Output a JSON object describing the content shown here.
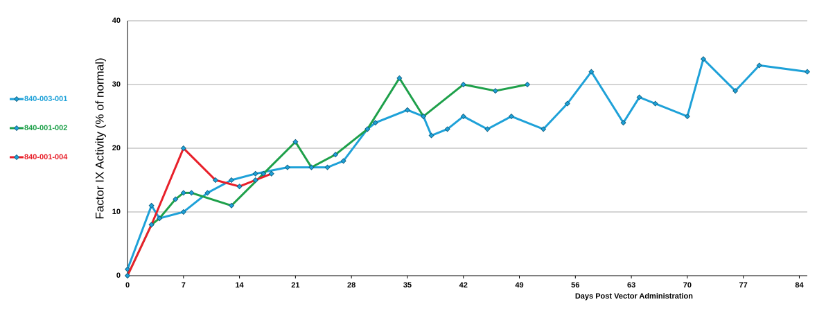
{
  "chart_data": {
    "type": "line",
    "y_label": "Factor IX Activity (% of normal)",
    "x_label": "Days Post Vector Administration",
    "xlim": [
      0,
      85
    ],
    "ylim": [
      0,
      40
    ],
    "xticks": [
      0,
      7,
      14,
      21,
      28,
      35,
      42,
      49,
      56,
      63,
      70,
      77,
      84
    ],
    "yticks": [
      0,
      10,
      20,
      30,
      40
    ],
    "grid": true,
    "legend": "left",
    "series": [
      {
        "name": "840-003-001",
        "color": "#1ea1d8",
        "x": [
          0,
          3,
          4,
          7,
          10,
          13,
          16,
          20,
          23,
          25,
          27,
          30,
          31,
          35,
          37,
          38,
          40,
          42,
          45,
          48,
          52,
          55,
          58,
          62,
          64,
          66,
          70,
          72,
          76,
          79,
          85
        ],
        "values": [
          1,
          11,
          9,
          10,
          13,
          15,
          16,
          17,
          17,
          17,
          18,
          23,
          24,
          26,
          25,
          22,
          23,
          25,
          23,
          25,
          23,
          27,
          32,
          24,
          28,
          27,
          25,
          34,
          29,
          33,
          32
        ]
      },
      {
        "name": "840-001-002",
        "color": "#1ea04a",
        "x": [
          0,
          3,
          4,
          6,
          7,
          8,
          13,
          17,
          21,
          23,
          26,
          30,
          34,
          37,
          42,
          46,
          50
        ],
        "values": [
          0,
          8,
          9,
          12,
          13,
          13,
          11,
          16,
          21,
          17,
          19,
          23,
          31,
          25,
          30,
          29,
          30
        ]
      },
      {
        "name": "840-001-004",
        "color": "#e8202a",
        "x": [
          0,
          3,
          7,
          11,
          14,
          16,
          18
        ],
        "values": [
          0,
          8,
          20,
          15,
          14,
          15,
          16
        ]
      }
    ]
  }
}
